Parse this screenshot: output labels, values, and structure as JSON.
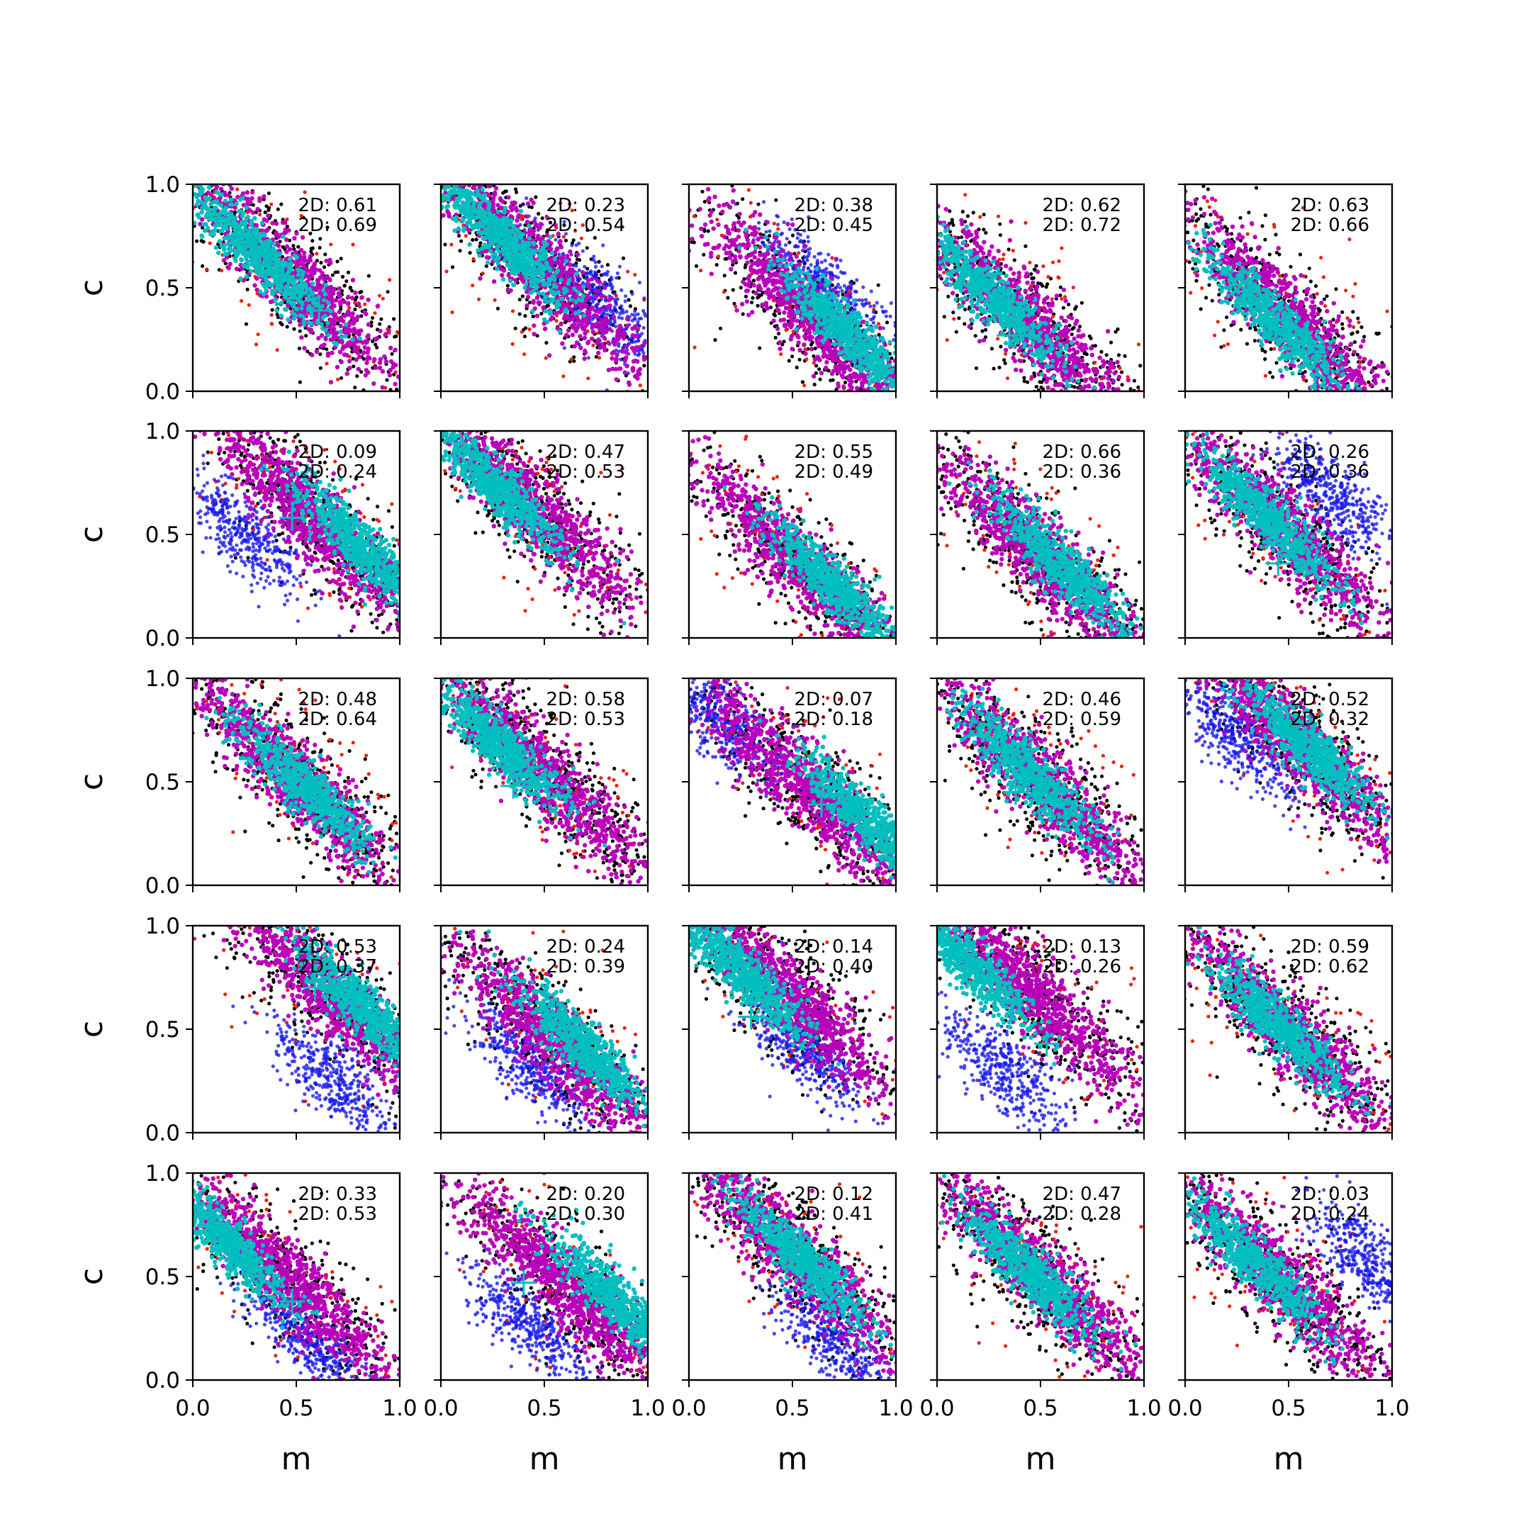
{
  "chart_data": {
    "type": "scatter",
    "grid": false,
    "xlabel": "m",
    "ylabel": "c",
    "xlim": [
      0,
      1
    ],
    "ylim": [
      0,
      1
    ],
    "x_ticks": [
      "0.0",
      "0.5",
      "1.0"
    ],
    "y_ticks": [
      "0.0",
      "0.5",
      "1.0"
    ],
    "colors": {
      "outer_black": "#000000",
      "outer_red": "#ee2211",
      "blue_cloud": "#1a1aee",
      "magenta_cloud": "#bb00bb",
      "cyan_core": "#00bfbf",
      "marker": "#00bfbf"
    },
    "panels": [
      {
        "row": 0,
        "col": 0,
        "stat1": "2D: 0.61",
        "stat2": "2D: 0.69",
        "marker": [
          0.61,
          0.39
        ],
        "center": [
          0.48,
          0.55
        ],
        "core": [
          0.32,
          0.66
        ],
        "blue": null
      },
      {
        "row": 0,
        "col": 1,
        "stat1": "2D: 0.23",
        "stat2": "2D: 0.54",
        "marker": null,
        "center": [
          0.45,
          0.62
        ],
        "core": [
          0.3,
          0.74
        ],
        "blue": [
          0.75,
          0.42
        ]
      },
      {
        "row": 0,
        "col": 2,
        "stat1": "2D: 0.38",
        "stat2": "2D: 0.45",
        "marker": null,
        "center": [
          0.62,
          0.33
        ],
        "core": [
          0.78,
          0.27
        ],
        "blue": [
          0.65,
          0.5
        ]
      },
      {
        "row": 0,
        "col": 3,
        "stat1": "2D: 0.62",
        "stat2": "2D: 0.72",
        "marker": [
          0.35,
          0.27
        ],
        "center": [
          0.45,
          0.32
        ],
        "core": [
          0.28,
          0.45
        ],
        "blue": null
      },
      {
        "row": 0,
        "col": 4,
        "stat1": "2D: 0.63",
        "stat2": "2D: 0.66",
        "marker": null,
        "center": [
          0.5,
          0.35
        ],
        "core": [
          0.45,
          0.33
        ],
        "blue": null
      },
      {
        "row": 1,
        "col": 0,
        "stat1": "2D: 0.09",
        "stat2": "2D: 0.24",
        "marker": [
          0.48,
          0.58
        ],
        "center": [
          0.6,
          0.55
        ],
        "core": [
          0.8,
          0.45
        ],
        "blue": [
          0.25,
          0.5
        ]
      },
      {
        "row": 1,
        "col": 1,
        "stat1": "2D: 0.47",
        "stat2": "2D: 0.53",
        "marker": null,
        "center": [
          0.45,
          0.62
        ],
        "core": [
          0.25,
          0.75
        ],
        "blue": null
      },
      {
        "row": 1,
        "col": 2,
        "stat1": "2D: 0.55",
        "stat2": "2D: 0.49",
        "marker": null,
        "center": [
          0.55,
          0.33
        ],
        "core": [
          0.7,
          0.25
        ],
        "blue": null
      },
      {
        "row": 1,
        "col": 3,
        "stat1": "2D: 0.66",
        "stat2": "2D: 0.36",
        "marker": null,
        "center": [
          0.5,
          0.4
        ],
        "core": [
          0.6,
          0.35
        ],
        "blue": null
      },
      {
        "row": 1,
        "col": 4,
        "stat1": "2D: 0.26",
        "stat2": "2D: 0.36",
        "marker": [
          0.45,
          0.36
        ],
        "center": [
          0.45,
          0.55
        ],
        "core": [
          0.4,
          0.58
        ],
        "blue": [
          0.72,
          0.68
        ]
      },
      {
        "row": 2,
        "col": 0,
        "stat1": "2D: 0.48",
        "stat2": "2D: 0.64",
        "marker": null,
        "center": [
          0.5,
          0.5
        ],
        "core": [
          0.55,
          0.47
        ],
        "blue": null
      },
      {
        "row": 2,
        "col": 1,
        "stat1": "2D: 0.58",
        "stat2": "2D: 0.53",
        "marker": [
          0.35,
          0.48
        ],
        "center": [
          0.5,
          0.55
        ],
        "core": [
          0.28,
          0.68
        ],
        "blue": null
      },
      {
        "row": 2,
        "col": 2,
        "stat1": "2D: 0.07",
        "stat2": "2D: 0.18",
        "marker": [
          0.64,
          0.39
        ],
        "center": [
          0.6,
          0.45
        ],
        "core": [
          0.88,
          0.3
        ],
        "blue": [
          0.15,
          0.8
        ]
      },
      {
        "row": 2,
        "col": 3,
        "stat1": "2D: 0.46",
        "stat2": "2D: 0.59",
        "marker": [
          0.38,
          0.45
        ],
        "center": [
          0.5,
          0.5
        ],
        "core": [
          0.45,
          0.53
        ],
        "blue": null
      },
      {
        "row": 2,
        "col": 4,
        "stat1": "2D: 0.52",
        "stat2": "2D: 0.32",
        "marker": null,
        "center": [
          0.55,
          0.68
        ],
        "core": [
          0.6,
          0.66
        ],
        "blue": [
          0.25,
          0.72
        ]
      },
      {
        "row": 3,
        "col": 0,
        "stat1": "2D: 0.53",
        "stat2": "2D: 0.37",
        "marker": [
          0.59,
          0.7
        ],
        "center": [
          0.65,
          0.68
        ],
        "core": [
          0.82,
          0.6
        ],
        "blue": [
          0.68,
          0.25
        ]
      },
      {
        "row": 3,
        "col": 1,
        "stat1": "2D: 0.24",
        "stat2": "2D: 0.39",
        "marker": null,
        "center": [
          0.55,
          0.45
        ],
        "core": [
          0.7,
          0.4
        ],
        "blue": [
          0.45,
          0.3
        ]
      },
      {
        "row": 3,
        "col": 2,
        "stat1": "2D: 0.14",
        "stat2": "2D: 0.40",
        "marker": [
          0.3,
          0.56
        ],
        "center": [
          0.45,
          0.7
        ],
        "core": [
          0.25,
          0.78
        ],
        "blue": [
          0.55,
          0.42
        ]
      },
      {
        "row": 3,
        "col": 3,
        "stat1": "2D: 0.13",
        "stat2": "2D: 0.26",
        "marker": [
          0.53,
          0.43
        ],
        "center": [
          0.45,
          0.68
        ],
        "core": [
          0.15,
          0.82
        ],
        "blue": [
          0.32,
          0.3
        ]
      },
      {
        "row": 3,
        "col": 4,
        "stat1": "2D: 0.59",
        "stat2": "2D: 0.62",
        "marker": null,
        "center": [
          0.5,
          0.5
        ],
        "core": [
          0.45,
          0.52
        ],
        "blue": null
      },
      {
        "row": 4,
        "col": 0,
        "stat1": "2D: 0.33",
        "stat2": "2D: 0.53",
        "marker": [
          0.48,
          0.38
        ],
        "center": [
          0.45,
          0.5
        ],
        "core": [
          0.15,
          0.68
        ],
        "blue": [
          0.55,
          0.2
        ]
      },
      {
        "row": 4,
        "col": 1,
        "stat1": "2D: 0.20",
        "stat2": "2D: 0.30",
        "marker": [
          0.4,
          0.47
        ],
        "center": [
          0.6,
          0.45
        ],
        "core": [
          0.85,
          0.38
        ],
        "blue": [
          0.45,
          0.25
        ]
      },
      {
        "row": 4,
        "col": 2,
        "stat1": "2D: 0.12",
        "stat2": "2D: 0.41",
        "marker": null,
        "center": [
          0.5,
          0.62
        ],
        "core": [
          0.55,
          0.58
        ],
        "blue": [
          0.68,
          0.22
        ]
      },
      {
        "row": 4,
        "col": 3,
        "stat1": "2D: 0.47",
        "stat2": "2D: 0.28",
        "marker": null,
        "center": [
          0.5,
          0.5
        ],
        "core": [
          0.45,
          0.52
        ],
        "blue": null
      },
      {
        "row": 4,
        "col": 4,
        "stat1": "2D: 0.03",
        "stat2": "2D: 0.24",
        "marker": null,
        "center": [
          0.45,
          0.5
        ],
        "core": [
          0.35,
          0.55
        ],
        "blue": [
          0.88,
          0.58
        ]
      }
    ]
  }
}
